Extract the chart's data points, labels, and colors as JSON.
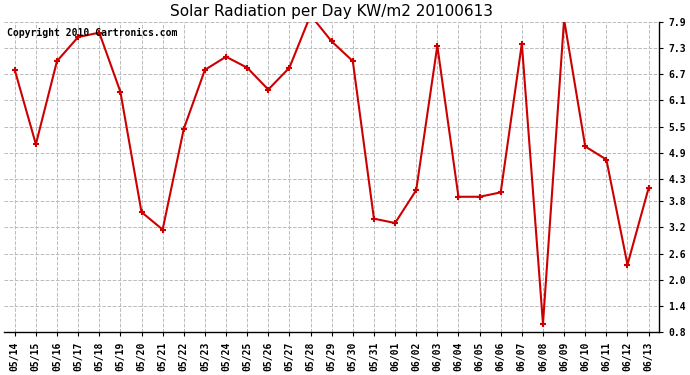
{
  "title": "Solar Radiation per Day KW/m2 20100613",
  "copyright": "Copyright 2010 Cartronics.com",
  "labels": [
    "05/14",
    "05/15",
    "05/16",
    "05/17",
    "05/18",
    "05/19",
    "05/20",
    "05/21",
    "05/22",
    "05/23",
    "05/24",
    "05/25",
    "05/26",
    "05/27",
    "05/28",
    "05/29",
    "05/30",
    "05/31",
    "06/01",
    "06/02",
    "06/03",
    "06/04",
    "06/05",
    "06/06",
    "06/07",
    "06/08",
    "06/09",
    "06/10",
    "06/11",
    "06/12",
    "06/13"
  ],
  "values": [
    6.8,
    5.1,
    7.0,
    7.55,
    7.65,
    6.3,
    3.55,
    3.15,
    5.45,
    6.8,
    7.1,
    6.85,
    6.35,
    6.85,
    8.05,
    7.45,
    7.0,
    3.4,
    3.3,
    4.05,
    7.35,
    3.9,
    3.9,
    4.0,
    7.4,
    1.0,
    7.95,
    5.05,
    4.75,
    2.35,
    4.1
  ],
  "line_color": "#cc0000",
  "marker": "+",
  "markersize": 5,
  "linewidth": 1.5,
  "ylim": [
    0.8,
    7.9
  ],
  "yticks": [
    0.8,
    1.4,
    2.0,
    2.6,
    3.2,
    3.8,
    4.3,
    4.9,
    5.5,
    6.1,
    6.7,
    7.3,
    7.9
  ],
  "grid_color": "#bbbbbb",
  "grid_linestyle": "--",
  "background_color": "#ffffff",
  "title_fontsize": 11,
  "copyright_fontsize": 7,
  "tick_fontsize": 7
}
